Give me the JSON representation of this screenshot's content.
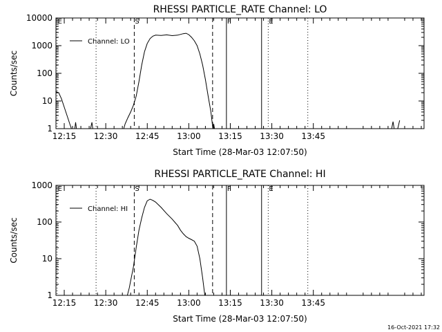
{
  "chart_data": [
    {
      "type": "line",
      "title": "RHESSI PARTICLE_RATE Channel: LO",
      "xlabel": "Start Time (28-Mar-03 12:07:50)",
      "ylabel": "Counts/sec",
      "y_scale": "log",
      "ylim": [
        1,
        10000
      ],
      "y_ticks": [
        "1",
        "10",
        "100",
        "1000",
        "10000"
      ],
      "xlim_minutes": [
        12.0,
        145.0
      ],
      "x_ticks": [
        {
          "label": "12:15",
          "t": 15
        },
        {
          "label": "12:30",
          "t": 30
        },
        {
          "label": "12:45",
          "t": 45
        },
        {
          "label": "13:00",
          "t": 60
        },
        {
          "label": "13:15",
          "t": 75
        },
        {
          "label": "13:30",
          "t": 90
        },
        {
          "label": "13:45",
          "t": 105
        }
      ],
      "grid": false,
      "legend_position": "top-left",
      "series": [
        {
          "name": "Channel: LO",
          "points": [
            [
              8.8,
              1
            ],
            [
              9.2,
              5
            ],
            [
              10,
              12
            ],
            [
              11,
              18
            ],
            [
              12,
              22
            ],
            [
              13,
              20
            ],
            [
              14,
              12
            ],
            [
              15,
              6
            ],
            [
              16,
              3
            ],
            [
              17,
              1.5
            ],
            [
              17.6,
              1
            ],
            [
              18.8,
              1
            ],
            [
              19.1,
              1.7
            ],
            [
              19.4,
              1
            ],
            [
              24.5,
              1
            ],
            [
              25.0,
              1.7
            ],
            [
              25.3,
              1
            ],
            [
              36.5,
              1
            ],
            [
              37,
              1.5
            ],
            [
              38,
              2.5
            ],
            [
              39,
              4
            ],
            [
              40,
              7
            ],
            [
              41,
              15
            ],
            [
              42,
              50
            ],
            [
              43,
              200
            ],
            [
              44,
              600
            ],
            [
              45,
              1200
            ],
            [
              46,
              1800
            ],
            [
              47,
              2200
            ],
            [
              48,
              2400
            ],
            [
              50,
              2350
            ],
            [
              52,
              2450
            ],
            [
              54,
              2300
            ],
            [
              56,
              2400
            ],
            [
              58,
              2700
            ],
            [
              59,
              2800
            ],
            [
              60,
              2500
            ],
            [
              61,
              2000
            ],
            [
              62,
              1500
            ],
            [
              63,
              1000
            ],
            [
              64,
              500
            ],
            [
              65,
              200
            ],
            [
              66,
              60
            ],
            [
              67,
              15
            ],
            [
              68,
              4
            ],
            [
              68.5,
              1.5
            ],
            [
              68.7,
              1
            ],
            [
              69.0,
              1.5
            ],
            [
              69.3,
              1
            ],
            [
              133.3,
              1
            ],
            [
              133.8,
              1.8
            ],
            [
              134.2,
              1
            ],
            [
              135.5,
              1
            ],
            [
              136.2,
              2
            ]
          ]
        }
      ],
      "annotations": [
        {
          "label": "E",
          "t": 12.4,
          "style": "dotted"
        },
        {
          "label": "",
          "t": 26.5,
          "style": "dotted"
        },
        {
          "label": "S",
          "t": 40.3,
          "style": "dashed"
        },
        {
          "label": "",
          "t": 68.6,
          "style": "dashed"
        },
        {
          "label": "F",
          "t": 73.6,
          "style": "solid"
        },
        {
          "label": "",
          "t": 86.3,
          "style": "solid"
        },
        {
          "label": "E",
          "t": 88.7,
          "style": "dotted"
        },
        {
          "label": "",
          "t": 103.0,
          "style": "dotted"
        }
      ]
    },
    {
      "type": "line",
      "title": "RHESSI PARTICLE_RATE Channel: HI",
      "xlabel": "Start Time (28-Mar-03 12:07:50)",
      "ylabel": "Counts/sec",
      "y_scale": "log",
      "ylim": [
        1,
        1000
      ],
      "y_ticks": [
        "1",
        "10",
        "100",
        "1000"
      ],
      "xlim_minutes": [
        12.0,
        145.0
      ],
      "x_ticks": [
        {
          "label": "12:15",
          "t": 15
        },
        {
          "label": "12:30",
          "t": 30
        },
        {
          "label": "12:45",
          "t": 45
        },
        {
          "label": "13:00",
          "t": 60
        },
        {
          "label": "13:15",
          "t": 75
        },
        {
          "label": "13:30",
          "t": 90
        },
        {
          "label": "13:45",
          "t": 105
        }
      ],
      "grid": false,
      "legend_position": "top-left",
      "series": [
        {
          "name": "Channel: HI",
          "points": [
            [
              37.8,
              1
            ],
            [
              38.5,
              1.6
            ],
            [
              39,
              2.5
            ],
            [
              40,
              6
            ],
            [
              41,
              20
            ],
            [
              42,
              60
            ],
            [
              43,
              130
            ],
            [
              44,
              250
            ],
            [
              45,
              380
            ],
            [
              46,
              420
            ],
            [
              47,
              390
            ],
            [
              48,
              350
            ],
            [
              50,
              250
            ],
            [
              52,
              170
            ],
            [
              54,
              120
            ],
            [
              56,
              80
            ],
            [
              57,
              60
            ],
            [
              58,
              48
            ],
            [
              59,
              40
            ],
            [
              60,
              36
            ],
            [
              61,
              33
            ],
            [
              62,
              30
            ],
            [
              63,
              22
            ],
            [
              64,
              10
            ],
            [
              65,
              3
            ],
            [
              65.5,
              1.5
            ],
            [
              65.8,
              1
            ]
          ]
        }
      ],
      "annotations": [
        {
          "label": "E",
          "t": 12.4,
          "style": "dotted"
        },
        {
          "label": "",
          "t": 26.5,
          "style": "dotted"
        },
        {
          "label": "S",
          "t": 40.3,
          "style": "dashed"
        },
        {
          "label": "",
          "t": 68.6,
          "style": "dashed"
        },
        {
          "label": "F",
          "t": 73.6,
          "style": "solid"
        },
        {
          "label": "",
          "t": 86.3,
          "style": "solid"
        },
        {
          "label": "E",
          "t": 88.7,
          "style": "dotted"
        },
        {
          "label": "",
          "t": 103.0,
          "style": "dotted"
        }
      ]
    }
  ],
  "footer": {
    "timestamp": "16-Oct-2021 17:32"
  }
}
